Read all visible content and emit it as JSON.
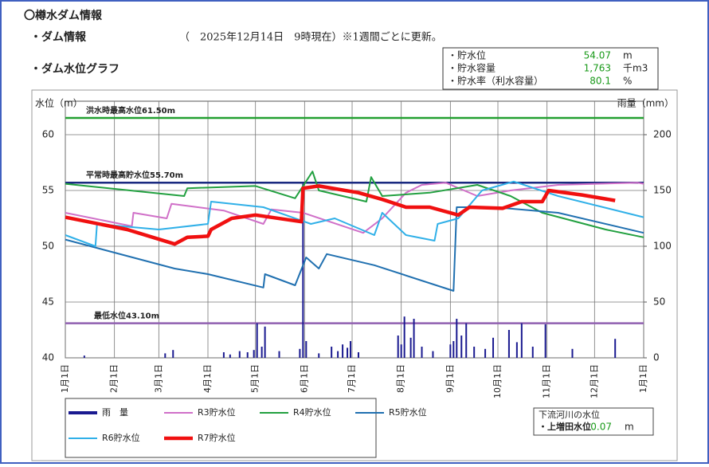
{
  "header": {
    "title": "〇樽水ダム情報",
    "section1": "・ダム情報",
    "timestamp": "（　2025年12月14日　9時現在）※1週間ごとに更新。",
    "section2": "・ダム水位グラフ"
  },
  "info": {
    "rows": [
      {
        "label": "・貯水位",
        "value": "54.07",
        "unit": "m"
      },
      {
        "label": "・貯水容量",
        "value": "1,763",
        "unit": "千m3"
      },
      {
        "label": "・貯水率（利水容量）",
        "value": "80.1",
        "unit": "%"
      }
    ]
  },
  "river": {
    "title": "下流河川の水位",
    "label": "・上増田水位",
    "value": "0.07",
    "unit": "m"
  },
  "chart_data": {
    "type": "line",
    "y_label": "水位（m）",
    "y2_label": "雨量（mm）",
    "xlim": [
      0,
      365
    ],
    "xticks": [
      {
        "value": 0,
        "label": "1月1日"
      },
      {
        "value": 31,
        "label": "2月1日"
      },
      {
        "value": 59,
        "label": "3月1日"
      },
      {
        "value": 90,
        "label": "4月1日"
      },
      {
        "value": 120,
        "label": "5月1日"
      },
      {
        "value": 151,
        "label": "6月1日"
      },
      {
        "value": 181,
        "label": "7月1日"
      },
      {
        "value": 212,
        "label": "8月1日"
      },
      {
        "value": 243,
        "label": "9月1日"
      },
      {
        "value": 273,
        "label": "10月1日"
      },
      {
        "value": 304,
        "label": "11月1日"
      },
      {
        "value": 334,
        "label": "12月1日"
      },
      {
        "value": 365,
        "label": "1月1日"
      }
    ],
    "ylim": [
      40,
      63
    ],
    "yticks": [
      40,
      45,
      50,
      55,
      60
    ],
    "y2lim": [
      0,
      230
    ],
    "y2ticks": [
      0,
      50,
      100,
      150,
      200
    ],
    "grid": true,
    "reference_lines": [
      {
        "label": "洪水時最高水位61.50m",
        "value": 61.5,
        "color": "#22a030"
      },
      {
        "label": "平常時最高貯水位55.70m",
        "value": 55.7,
        "color": "#1a2a80"
      },
      {
        "label": "最低水位43.10m",
        "value": 43.1,
        "color": "#9060b0"
      }
    ],
    "series": [
      {
        "name": "雨　量",
        "type": "bar",
        "axis": "y2",
        "color": "#1a1a90",
        "x": [
          12,
          63,
          68,
          100,
          104,
          110,
          115,
          119,
          121,
          124,
          126,
          135,
          148,
          150,
          152,
          160,
          168,
          172,
          175,
          178,
          180,
          185,
          210,
          212,
          214,
          218,
          220,
          225,
          232,
          243,
          245,
          247,
          250,
          253,
          258,
          265,
          270,
          280,
          285,
          288,
          295,
          303,
          320,
          347
        ],
        "values": [
          2,
          4,
          7,
          5,
          3,
          6,
          5,
          7,
          31,
          10,
          28,
          6,
          8,
          156,
          15,
          4,
          10,
          6,
          12,
          9,
          15,
          5,
          20,
          12,
          37,
          18,
          35,
          10,
          6,
          12,
          15,
          35,
          20,
          31,
          10,
          8,
          18,
          25,
          14,
          31,
          10,
          30,
          8,
          17
        ]
      },
      {
        "name": "R3貯水位",
        "color": "#d070c8",
        "width": 2,
        "x": [
          0,
          42,
          43,
          64,
          67,
          100,
          125,
          130,
          150,
          188,
          200,
          215,
          225,
          240,
          260,
          281,
          311,
          361,
          365
        ],
        "values": [
          53,
          51.8,
          53,
          52.5,
          53.8,
          53.2,
          52,
          53.3,
          53,
          51.2,
          52.5,
          54.8,
          55.5,
          55.7,
          54.5,
          55,
          55.5,
          55.7,
          55.6
        ]
      },
      {
        "name": "R4貯水位",
        "color": "#22a040",
        "width": 2,
        "x": [
          0,
          75,
          77,
          120,
          145,
          156,
          160,
          190,
          193,
          200,
          230,
          260,
          281,
          301,
          341,
          365
        ],
        "values": [
          55.6,
          54.5,
          55.2,
          55.4,
          54.3,
          56.7,
          55,
          54,
          56.2,
          54.5,
          54.8,
          55.5,
          54.5,
          53,
          51.5,
          50.8
        ]
      },
      {
        "name": "R5貯水位",
        "color": "#2070b0",
        "width": 2,
        "x": [
          0,
          69,
          90,
          125,
          126,
          145,
          152,
          160,
          165,
          195,
          245,
          247,
          271,
          311,
          365
        ],
        "values": [
          50.6,
          48,
          47.5,
          46.3,
          47.5,
          46.5,
          49,
          48,
          49.3,
          48.3,
          46,
          53.5,
          53.5,
          53,
          51.2
        ]
      },
      {
        "name": "R6貯水位",
        "color": "#30b0e8",
        "width": 2,
        "x": [
          0,
          19,
          20,
          59,
          90,
          92,
          125,
          155,
          170,
          195,
          200,
          215,
          233,
          235,
          248,
          263,
          283,
          311,
          365
        ],
        "values": [
          51,
          50,
          52,
          51.5,
          52,
          54,
          53.5,
          52,
          52.5,
          51,
          53,
          51,
          50.5,
          52,
          52.5,
          55,
          55.8,
          54.5,
          52.6
        ]
      },
      {
        "name": "R7貯水位",
        "color": "#f01010",
        "width": 4.5,
        "x": [
          0,
          39,
          69,
          77,
          90,
          92,
          105,
          120,
          149,
          150,
          160,
          185,
          200,
          215,
          230,
          248,
          255,
          276,
          288,
          301,
          305,
          326,
          347
        ],
        "values": [
          52.6,
          51.5,
          50.2,
          50.8,
          50.9,
          51.5,
          52.5,
          52.8,
          52.2,
          55.2,
          55.4,
          54.8,
          54.2,
          53.5,
          53.5,
          52.8,
          53.5,
          53.4,
          54,
          54,
          55,
          54.6,
          54.1
        ]
      }
    ]
  }
}
